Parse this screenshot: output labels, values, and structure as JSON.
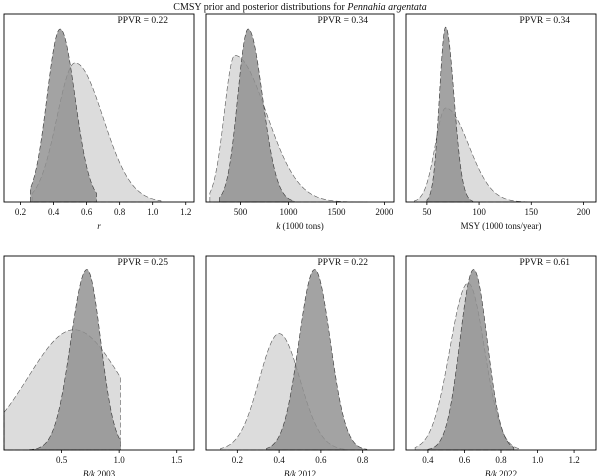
{
  "figure": {
    "title_prefix": "CMSY prior and posterior distributions for ",
    "title_species": "Pennahia argentata"
  },
  "colors": {
    "prior": "#dcdcdc",
    "posterior": "#8f8f8f",
    "outline": "#333333"
  },
  "chart_data": [
    {
      "type": "area",
      "xlabel": "r",
      "xlabel_italic": true,
      "annotation": "PPVR = 0.22",
      "xlim": [
        0.1,
        1.25
      ],
      "xticks": [
        0.2,
        0.4,
        0.6,
        0.8,
        1.0,
        1.2
      ],
      "xtick_labels": [
        "0.2",
        "0.4",
        "0.6",
        "0.8",
        "1.0",
        "1.2"
      ],
      "prior": {
        "mode": 0.53,
        "sd_left": 0.11,
        "sd_right": 0.17,
        "peak": 0.74,
        "range": [
          0.27,
          1.05
        ]
      },
      "posterior": {
        "mode": 0.44,
        "sd_left": 0.08,
        "sd_right": 0.09,
        "peak": 0.92,
        "range": [
          0.26,
          0.66
        ]
      }
    },
    {
      "type": "area",
      "xlabel": "k (1000 tons)",
      "xlabel_italic_prefix": "k",
      "annotation": "PPVR = 0.34",
      "xlim": [
        140,
        2100
      ],
      "xticks": [
        500,
        1000,
        1500,
        2000
      ],
      "xtick_labels": [
        "500",
        "1000",
        "1500",
        "2000"
      ],
      "prior": {
        "mode": 440,
        "sd_left": 110,
        "sd_right": 330,
        "peak": 0.78,
        "range": [
          180,
          1820
        ]
      },
      "posterior": {
        "mode": 580,
        "sd_left": 110,
        "sd_right": 150,
        "peak": 0.92,
        "range": [
          280,
          1060
        ]
      }
    },
    {
      "type": "area",
      "xlabel": "MSY (1000 tons/year)",
      "annotation": "PPVR = 0.34",
      "xlim": [
        30,
        212
      ],
      "xticks": [
        50,
        100,
        150,
        200
      ],
      "xtick_labels": [
        "50",
        "100",
        "150",
        "200"
      ],
      "prior": {
        "mode": 68,
        "sd_left": 10,
        "sd_right": 22,
        "peak": 0.5,
        "range": [
          38,
          146
        ]
      },
      "posterior": {
        "mode": 68,
        "sd_left": 6,
        "sd_right": 8,
        "peak": 0.93,
        "range": [
          50,
          94
        ]
      }
    },
    {
      "type": "area",
      "xlabel": "B/k 2003",
      "xlabel_italic_prefix": "B/k",
      "annotation": "PPVR = 0.25",
      "xlim": [
        0,
        1.65
      ],
      "xticks": [
        0.5,
        1.0,
        1.5
      ],
      "xtick_labels": [
        "0.5",
        "1.0",
        "1.5"
      ],
      "prior": {
        "mode": 0.61,
        "sd_left": 0.4,
        "sd_right": 0.4,
        "peak": 0.62,
        "range": [
          0,
          1.01
        ]
      },
      "posterior": {
        "mode": 0.72,
        "sd_left": 0.14,
        "sd_right": 0.12,
        "peak": 0.93,
        "range": [
          0.22,
          1.01
        ]
      }
    },
    {
      "type": "area",
      "xlabel": "B/k 2012",
      "xlabel_italic_prefix": "B/k",
      "annotation": "PPVR = 0.22",
      "xlim": [
        0.05,
        0.95
      ],
      "xticks": [
        0.2,
        0.4,
        0.6,
        0.8
      ],
      "xtick_labels": [
        "0.2",
        "0.4",
        "0.6",
        "0.8"
      ],
      "prior": {
        "mode": 0.4,
        "sd_left": 0.095,
        "sd_right": 0.1,
        "peak": 0.6,
        "range": [
          0.12,
          0.72
        ]
      },
      "posterior": {
        "mode": 0.57,
        "sd_left": 0.075,
        "sd_right": 0.075,
        "peak": 0.93,
        "range": [
          0.34,
          0.82
        ]
      }
    },
    {
      "type": "area",
      "xlabel": "B/k 2022",
      "xlabel_italic_prefix": "B/k",
      "annotation": "PPVR = 0.61",
      "xlim": [
        0.28,
        1.32
      ],
      "xticks": [
        0.4,
        0.6,
        0.8,
        1.0,
        1.2
      ],
      "xtick_labels": [
        "0.4",
        "0.6",
        "0.8",
        "1.0",
        "1.2"
      ],
      "prior": {
        "mode": 0.62,
        "sd_left": 0.1,
        "sd_right": 0.09,
        "peak": 0.86,
        "range": [
          0.33,
          0.9
        ]
      },
      "posterior": {
        "mode": 0.65,
        "sd_left": 0.075,
        "sd_right": 0.075,
        "peak": 0.93,
        "range": [
          0.4,
          0.87
        ]
      }
    }
  ]
}
